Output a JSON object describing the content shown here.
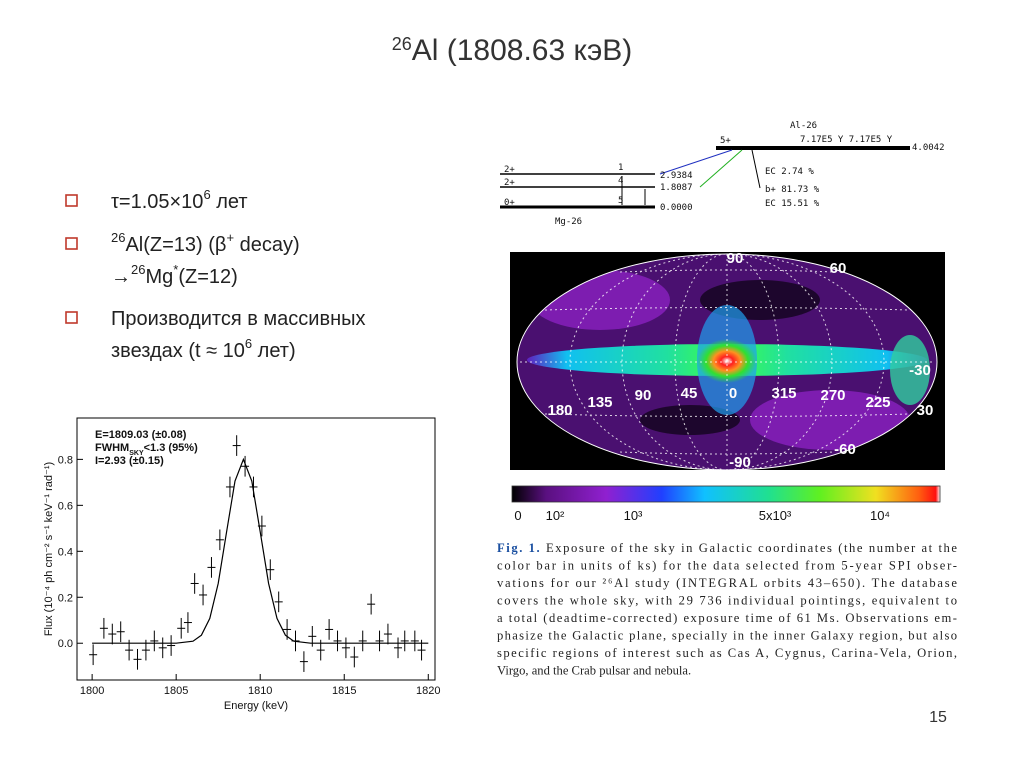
{
  "title": [
    {
      "text": "26",
      "sup": true
    },
    {
      "text": "Al (1808.63 кэВ)"
    }
  ],
  "bullets": [
    {
      "lines": [
        [
          {
            "text": "τ=1.05×10"
          },
          {
            "text": "6",
            "sup": true
          },
          {
            "text": " лет"
          }
        ]
      ]
    },
    {
      "lines": [
        [
          {
            "text": "26",
            "sup": true
          },
          {
            "text": "Al(Z=13) (β"
          },
          {
            "text": "+",
            "sup": true
          },
          {
            "text": " decay)"
          }
        ],
        [
          {
            "text": "→"
          },
          {
            "text": "26",
            "sup": true
          },
          {
            "text": "Mg"
          },
          {
            "text": "*",
            "sup": true
          },
          {
            "text": "(Z=12)"
          }
        ]
      ]
    },
    {
      "lines": [
        [
          {
            "text": "Производится в массивных"
          }
        ],
        [
          {
            "text": "звездах (t ≈ 10"
          },
          {
            "text": "6",
            "sup": true
          },
          {
            "text": " лет)"
          }
        ]
      ]
    }
  ],
  "decay_scheme": {
    "parent": "Al-26",
    "parent_spin": "5+",
    "half_life": "7.17E5 Y  7.17E5 Y",
    "parent_energy": "4.0042",
    "daughter": "Mg-26",
    "levels": [
      {
        "spin": "2+",
        "index": "1",
        "energy": "2.9384"
      },
      {
        "spin": "2+",
        "index": "4",
        "energy": "1.8087"
      },
      {
        "spin": "0+",
        "index": "5",
        "energy": "0.0000"
      }
    ],
    "branches": [
      "EC 2.74 %",
      "b+ 81.73 %",
      "EC 15.51 %"
    ]
  },
  "spectrum": {
    "type": "scatter",
    "xlabel": "Energy (keV)",
    "ylabel": "Flux (10⁻⁴ ph cm⁻² s⁻¹ keV⁻¹ rad⁻¹)",
    "annotations": [
      [
        {
          "text": "E=1809.03 "
        },
        {
          "text": "(±0.08)"
        }
      ],
      [
        {
          "text": "FWHM"
        },
        {
          "text": "SKY",
          "sub": true
        },
        {
          "text": "<1.3 "
        },
        {
          "text": "(95%)"
        }
      ],
      [
        {
          "text": "I=2.93 "
        },
        {
          "text": "(±0.15)"
        }
      ]
    ],
    "xlim": [
      1799.1,
      1820.4
    ],
    "ylim": [
      -0.16,
      0.98
    ],
    "xticks": [
      1800,
      1805,
      1810,
      1815,
      1820
    ],
    "yticks": [
      {
        "value": 0,
        "label": "0.0"
      },
      0.2,
      0.4,
      0.6,
      0.8
    ],
    "x": [
      1800.06,
      1800.7,
      1801.2,
      1801.7,
      1802.2,
      1802.7,
      1803.2,
      1803.7,
      1804.2,
      1804.7,
      1805.3,
      1805.7,
      1806.1,
      1806.6,
      1807.1,
      1807.6,
      1808.2,
      1808.6,
      1809.1,
      1809.6,
      1810.1,
      1810.6,
      1811.1,
      1811.6,
      1812.1,
      1812.6,
      1813.1,
      1813.6,
      1814.1,
      1814.6,
      1815.1,
      1815.6,
      1816.1,
      1816.6,
      1817.1,
      1817.6,
      1818.2,
      1818.6,
      1819.2,
      1819.6
    ],
    "values": [
      -0.05,
      0.065,
      0.04,
      0.05,
      -0.03,
      -0.07,
      -0.03,
      0.01,
      -0.02,
      -0.01,
      0.065,
      0.09,
      0.26,
      0.21,
      0.33,
      0.45,
      0.68,
      0.86,
      0.77,
      0.68,
      0.51,
      0.32,
      0.18,
      0.06,
      0.01,
      -0.08,
      0.03,
      -0.03,
      0.06,
      0.01,
      -0.02,
      -0.06,
      0.01,
      0.17,
      0.01,
      0.04,
      -0.02,
      0.01,
      0.01,
      -0.03
    ],
    "error": 0.045,
    "fit": {
      "x": [
        1800,
        1802,
        1804,
        1805,
        1806,
        1806.5,
        1807,
        1807.5,
        1808,
        1808.5,
        1809,
        1809.5,
        1810,
        1810.5,
        1811,
        1811.5,
        1812,
        1813,
        1814,
        1816,
        1818,
        1820
      ],
      "values": [
        0,
        0,
        0,
        0,
        0.009,
        0.035,
        0.108,
        0.26,
        0.485,
        0.706,
        0.8,
        0.706,
        0.485,
        0.26,
        0.108,
        0.035,
        0.009,
        0,
        0,
        0,
        0,
        0
      ]
    }
  },
  "sky_map": {
    "latitude_labels": [
      "90",
      "60",
      "30",
      "-30",
      "-60",
      "-90"
    ],
    "longitude_labels": [
      "180",
      "135",
      "90",
      "45",
      "0",
      "315",
      "270",
      "225"
    ],
    "colorbar_labels": [
      "0",
      "10²",
      "10³",
      "5x10³",
      "10⁴"
    ]
  },
  "caption": {
    "label": "Fig. 1.",
    "lines": [
      " Exposure of the sky in Galactic coordinates (the number at the",
      "color bar in units of ks) for the data selected from 5-year SPI obser-",
      "vations for our ²⁶Al study (INTEGRAL orbits 43–650). The database",
      "covers the whole sky, with 29 736 individual pointings, equivalent to",
      "a total (deadtime-corrected) exposure time of 61 Ms. Observations em-",
      "phasize the Galactic plane, specially in the inner Galaxy region, but also",
      "specific regions of interest such as Cas A, Cygnus, Carina-Vela, Orion,",
      "Virgo, and the Crab pulsar and nebula."
    ]
  },
  "page_number": "15"
}
